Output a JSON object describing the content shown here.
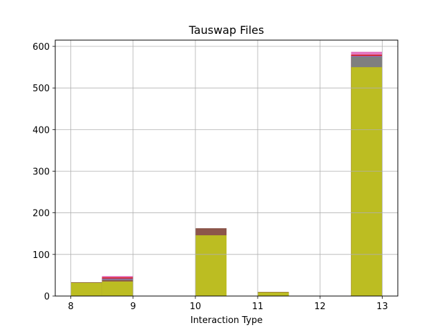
{
  "chart_data": {
    "type": "bar",
    "title": "Tauswap Files",
    "xlabel": "Interaction Type",
    "ylabel": "",
    "xlim": [
      7.75,
      13.25
    ],
    "ylim": [
      0,
      615
    ],
    "grid": true,
    "x_ticks": [
      "8",
      "9",
      "10",
      "11",
      "12",
      "13"
    ],
    "y_ticks": [
      "0",
      "100",
      "200",
      "300",
      "400",
      "500",
      "600"
    ],
    "bin_edges": [
      8,
      8.5,
      9,
      9.5,
      10,
      10.5,
      11,
      11.5,
      12,
      12.5,
      13
    ],
    "layers": [
      {
        "color": "#e377c2",
        "values": [
          33,
          48,
          0,
          0,
          0,
          0,
          0,
          0,
          0,
          587
        ]
      },
      {
        "color": "#d62728",
        "values": [
          33,
          45,
          0,
          0,
          0,
          0,
          0,
          0,
          0,
          580
        ]
      },
      {
        "color": "#9467bd",
        "values": [
          33,
          42,
          0,
          0,
          0,
          0,
          0,
          0,
          0,
          577
        ]
      },
      {
        "color": "#7f7f7f",
        "values": [
          33,
          40,
          0,
          0,
          0,
          0,
          0,
          0,
          0,
          575
        ]
      },
      {
        "color": "#8c564b",
        "values": [
          33,
          38,
          0,
          0,
          163,
          0,
          10,
          0,
          0,
          550
        ]
      },
      {
        "color": "#bcbd22",
        "values": [
          32,
          35,
          0,
          0,
          146,
          0,
          9,
          0,
          0,
          550
        ]
      }
    ]
  }
}
